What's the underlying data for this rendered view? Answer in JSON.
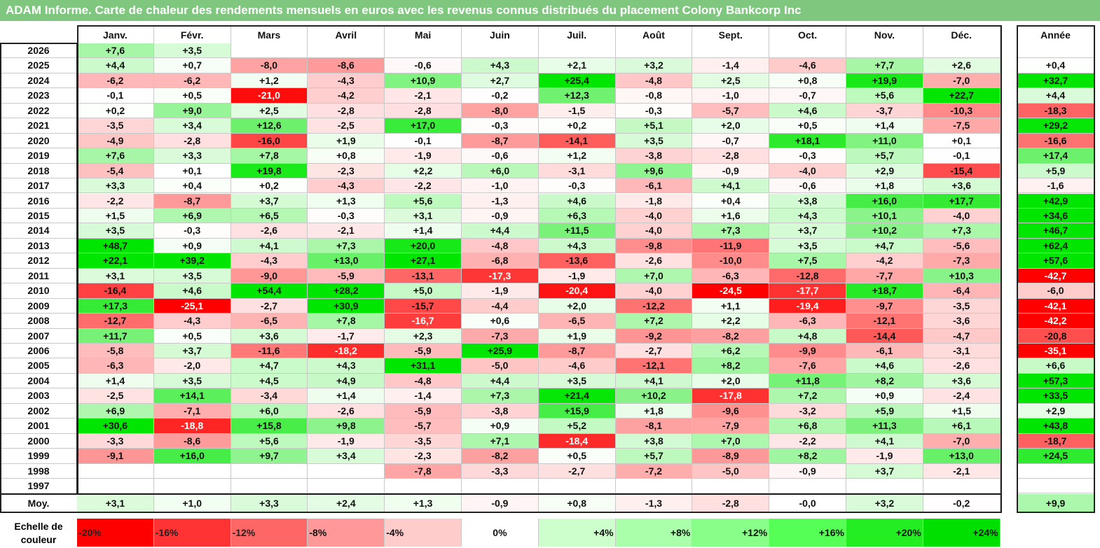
{
  "title": "ADAM Informe. Carte de chaleur des rendements mensuels en euros avec les revenus connus distribués du placement Colony Bankcorp Inc",
  "legend_label": "Echelle de couleur",
  "chart_data": {
    "type": "heatmap",
    "title": "ADAM Informe. Carte de chaleur des rendements mensuels en euros avec les revenus connus distribués du placement Colony Bankcorp Inc",
    "columns": [
      "Janv.",
      "Févr.",
      "Mars",
      "Avril",
      "Mai",
      "Juin",
      "Juil.",
      "Août",
      "Sept.",
      "Oct.",
      "Nov.",
      "Déc."
    ],
    "year_header": "Année",
    "rows": [
      {
        "label": "2026",
        "values": [
          "+7,6",
          "+3,5",
          "",
          "",
          "",
          "",
          "",
          "",
          "",
          "",
          "",
          ""
        ],
        "year": ""
      },
      {
        "label": "2025",
        "values": [
          "+4,4",
          "+0,7",
          "-8,0",
          "-8,6",
          "-0,6",
          "+4,3",
          "+2,1",
          "+3,2",
          "-1,4",
          "-4,6",
          "+7,7",
          "+2,6"
        ],
        "year": "+0,4"
      },
      {
        "label": "2024",
        "values": [
          "-6,2",
          "-6,2",
          "+1,2",
          "-4,3",
          "+10,9",
          "+2,7",
          "+25,4",
          "-4,8",
          "+2,5",
          "+0,8",
          "+19,9",
          "-7,0"
        ],
        "year": "+32,7"
      },
      {
        "label": "2023",
        "values": [
          "-0,1",
          "+0,5",
          "-21,0",
          "-4,2",
          "-2,1",
          "-0,2",
          "+12,3",
          "-0,8",
          "-1,0",
          "-0,7",
          "+5,6",
          "+22,7"
        ],
        "year": "+4,4"
      },
      {
        "label": "2022",
        "values": [
          "+0,2",
          "+9,0",
          "+2,5",
          "-2,8",
          "-2,8",
          "-8,0",
          "-1,5",
          "-0,3",
          "-5,7",
          "+4,6",
          "-3,7",
          "-10,3"
        ],
        "year": "-18,3"
      },
      {
        "label": "2021",
        "values": [
          "-3,5",
          "+3,4",
          "+12,6",
          "-2,5",
          "+17,0",
          "-0,3",
          "+0,2",
          "+5,1",
          "+2,0",
          "+0,5",
          "+1,4",
          "-7,5"
        ],
        "year": "+29,2"
      },
      {
        "label": "2020",
        "values": [
          "-4,9",
          "-2,8",
          "-16,0",
          "+1,9",
          "-0,1",
          "-8,7",
          "-14,1",
          "+3,5",
          "-0,7",
          "+18,1",
          "+11,0",
          "+0,1"
        ],
        "year": "-16,6"
      },
      {
        "label": "2019",
        "values": [
          "+7,6",
          "+3,3",
          "+7,8",
          "+0,8",
          "-1,9",
          "-0,6",
          "+1,2",
          "-3,8",
          "-2,8",
          "-0,3",
          "+5,7",
          "-0,1"
        ],
        "year": "+17,4"
      },
      {
        "label": "2018",
        "values": [
          "-5,4",
          "+0,1",
          "+19,8",
          "-2,3",
          "+2,2",
          "+6,0",
          "-3,1",
          "+9,6",
          "-0,9",
          "-4,0",
          "+2,9",
          "-15,4"
        ],
        "year": "+5,9"
      },
      {
        "label": "2017",
        "values": [
          "+3,3",
          "+0,4",
          "+0,2",
          "-4,3",
          "-2,2",
          "-1,0",
          "-0,3",
          "-6,1",
          "+4,1",
          "-0,6",
          "+1,8",
          "+3,6"
        ],
        "year": "-1,6"
      },
      {
        "label": "2016",
        "values": [
          "-2,2",
          "-8,7",
          "+3,7",
          "+1,3",
          "+5,6",
          "-1,3",
          "+4,6",
          "-1,8",
          "+0,4",
          "+3,8",
          "+16,0",
          "+17,7"
        ],
        "year": "+42,9"
      },
      {
        "label": "2015",
        "values": [
          "+1,5",
          "+6,9",
          "+6,5",
          "-0,3",
          "+3,1",
          "-0,9",
          "+6,3",
          "-4,0",
          "+1,6",
          "+4,3",
          "+10,1",
          "-4,0"
        ],
        "year": "+34,6"
      },
      {
        "label": "2014",
        "values": [
          "+3,5",
          "-0,3",
          "-2,6",
          "-2,1",
          "+1,4",
          "+4,4",
          "+11,5",
          "-4,0",
          "+7,3",
          "+3,7",
          "+10,2",
          "+7,3"
        ],
        "year": "+46,7"
      },
      {
        "label": "2013",
        "values": [
          "+48,7",
          "+0,9",
          "+4,1",
          "+7,3",
          "+20,0",
          "-4,8",
          "+4,3",
          "-9,8",
          "-11,9",
          "+3,5",
          "+4,7",
          "-5,6"
        ],
        "year": "+62,4"
      },
      {
        "label": "2012",
        "values": [
          "+22,1",
          "+39,2",
          "-4,3",
          "+13,0",
          "+27,1",
          "-6,8",
          "-13,6",
          "-2,6",
          "-10,0",
          "+7,5",
          "-4,2",
          "-7,3"
        ],
        "year": "+57,6"
      },
      {
        "label": "2011",
        "values": [
          "+3,1",
          "+3,5",
          "-9,0",
          "-5,9",
          "-13,1",
          "-17,3",
          "-1,9",
          "+7,0",
          "-6,3",
          "-12,8",
          "-7,7",
          "+10,3"
        ],
        "year": "-42,7"
      },
      {
        "label": "2010",
        "values": [
          "-16,4",
          "+4,6",
          "+54,4",
          "+28,2",
          "+5,0",
          "-1,9",
          "-20,4",
          "-4,0",
          "-24,5",
          "-17,7",
          "+18,7",
          "-6,4"
        ],
        "year": "-6,0"
      },
      {
        "label": "2009",
        "values": [
          "+17,3",
          "-25,1",
          "-2,7",
          "+30,9",
          "-15,7",
          "-4,4",
          "+2,0",
          "-12,2",
          "+1,1",
          "-19,4",
          "-9,7",
          "-3,5"
        ],
        "year": "-42,1"
      },
      {
        "label": "2008",
        "values": [
          "-12,7",
          "-4,3",
          "-6,5",
          "+7,8",
          "-16,7",
          "+0,6",
          "-6,5",
          "+7,2",
          "+2,2",
          "-6,3",
          "-12,1",
          "-3,6"
        ],
        "year": "-42,2"
      },
      {
        "label": "2007",
        "values": [
          "+11,7",
          "+0,5",
          "+3,6",
          "-1,7",
          "+2,3",
          "-7,3",
          "+1,9",
          "-9,2",
          "-8,2",
          "+4,8",
          "-14,4",
          "-4,7"
        ],
        "year": "-20,8"
      },
      {
        "label": "2006",
        "values": [
          "-5,8",
          "+3,7",
          "-11,6",
          "-18,2",
          "-5,9",
          "+25,9",
          "-8,7",
          "-2,7",
          "+6,2",
          "-9,9",
          "-6,1",
          "-3,1"
        ],
        "year": "-35,1"
      },
      {
        "label": "2005",
        "values": [
          "-6,3",
          "-2,0",
          "+4,7",
          "+4,3",
          "+31,1",
          "-5,0",
          "-4,6",
          "-12,1",
          "+8,2",
          "-7,6",
          "+4,6",
          "-2,6"
        ],
        "year": "+6,6"
      },
      {
        "label": "2004",
        "values": [
          "+1,4",
          "+3,5",
          "+4,5",
          "+4,9",
          "-4,8",
          "+4,4",
          "+3,5",
          "+4,1",
          "+2,0",
          "+11,8",
          "+8,2",
          "+3,6"
        ],
        "year": "+57,3"
      },
      {
        "label": "2003",
        "values": [
          "-2,5",
          "+14,1",
          "-3,4",
          "+1,4",
          "-1,4",
          "+7,3",
          "+21,4",
          "+10,2",
          "-17,8",
          "+7,2",
          "+0,9",
          "-2,4"
        ],
        "year": "+33,5"
      },
      {
        "label": "2002",
        "values": [
          "+6,9",
          "-7,1",
          "+6,0",
          "-2,6",
          "-5,9",
          "-3,8",
          "+15,9",
          "+1,8",
          "-9,6",
          "-3,2",
          "+5,9",
          "+1,5"
        ],
        "year": "+2,9"
      },
      {
        "label": "2001",
        "values": [
          "+30,6",
          "-18,8",
          "+15,8",
          "+9,8",
          "-5,7",
          "+0,9",
          "+5,2",
          "-8,1",
          "-7,9",
          "+6,8",
          "+11,3",
          "+6,1"
        ],
        "year": "+43,8"
      },
      {
        "label": "2000",
        "values": [
          "-3,3",
          "-8,6",
          "+5,6",
          "-1,9",
          "-3,5",
          "+7,1",
          "-18,4",
          "+3,8",
          "+7,0",
          "-2,2",
          "+4,1",
          "-7,0"
        ],
        "year": "-18,7"
      },
      {
        "label": "1999",
        "values": [
          "-9,1",
          "+16,0",
          "+9,7",
          "+3,4",
          "-2,3",
          "-8,2",
          "+0,5",
          "+5,7",
          "-8,9",
          "+8,2",
          "-1,9",
          "+13,0"
        ],
        "year": "+24,5"
      },
      {
        "label": "1998",
        "values": [
          "",
          "",
          "",
          "",
          "-7,8",
          "-3,3",
          "-2,7",
          "-7,2",
          "-5,0",
          "-0,9",
          "+3,7",
          "-2,1"
        ],
        "year": ""
      },
      {
        "label": "1997",
        "values": [
          "",
          "",
          "",
          "",
          "",
          "",
          "",
          "",
          "",
          "",
          "",
          ""
        ],
        "year": ""
      }
    ],
    "average": {
      "label": "Moy.",
      "values": [
        "+3,1",
        "+1,0",
        "+3,3",
        "+2,4",
        "+1,3",
        "-0,9",
        "+0,8",
        "-1,3",
        "-2,8",
        "-0,0",
        "+3,2",
        "-0,2"
      ],
      "year": "+9,9"
    },
    "scale": [
      "-20%",
      "-16%",
      "-12%",
      "-8%",
      "-4%",
      "0%",
      "+4%",
      "+8%",
      "+12%",
      "+16%",
      "+20%",
      "+24%"
    ],
    "colors": {
      "negative_max": "#ff0000",
      "neutral": "#ffffff",
      "positive_max": "#00e000",
      "title_bg": "#7fc77f"
    }
  }
}
